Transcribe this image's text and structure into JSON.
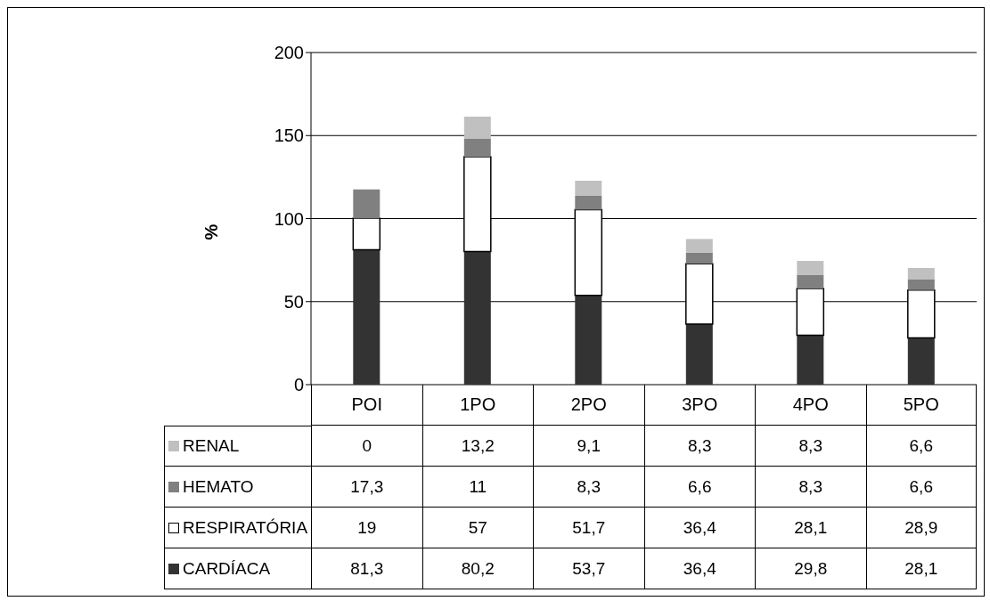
{
  "chart_data": {
    "type": "bar",
    "ylabel": "%",
    "stacked": true,
    "grid": "y",
    "legend": "bottom",
    "categories": [
      "POI",
      "1PO",
      "2PO",
      "3PO",
      "4PO",
      "5PO"
    ],
    "ylim": [
      0,
      200
    ],
    "yticks": [
      0,
      50,
      100,
      150,
      200
    ],
    "series": [
      {
        "name": "CARDÍACA",
        "color": "#333333",
        "values": [
          81.3,
          80.2,
          53.7,
          36.4,
          29.8,
          28.1
        ],
        "value_labels": [
          "81,3",
          "80,2",
          "53,7",
          "36,4",
          "29,8",
          "28,1"
        ]
      },
      {
        "name": "RESPIRATÓRIA",
        "color": "#ffffff",
        "values": [
          19,
          57,
          51.7,
          36.4,
          28.1,
          28.9
        ],
        "value_labels": [
          "19",
          "57",
          "51,7",
          "36,4",
          "28,1",
          "28,9"
        ]
      },
      {
        "name": "HEMATO",
        "color": "#808080",
        "values": [
          17.3,
          11,
          8.3,
          6.6,
          8.3,
          6.6
        ],
        "value_labels": [
          "17,3",
          "11",
          "8,3",
          "6,6",
          "8,3",
          "6,6"
        ]
      },
      {
        "name": "RENAL",
        "color": "#c0c0c0",
        "values": [
          0,
          13.2,
          9.1,
          8.3,
          8.3,
          6.6
        ],
        "value_labels": [
          "0",
          "13,2",
          "9,1",
          "8,3",
          "8,3",
          "6,6"
        ]
      }
    ]
  }
}
